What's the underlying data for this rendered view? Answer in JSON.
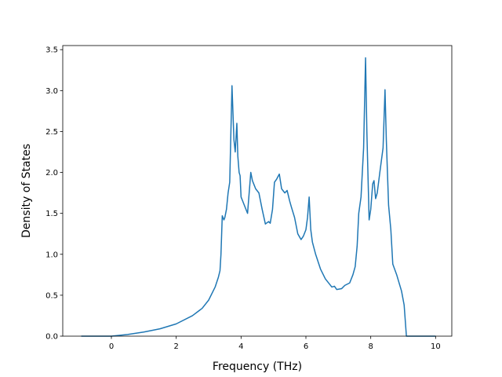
{
  "chart_data": {
    "type": "line",
    "title": "",
    "xlabel": "Frequency (THz)",
    "ylabel": "Density of States",
    "xlim": [
      -1.5,
      10.5
    ],
    "ylim": [
      0,
      3.55
    ],
    "xticks": [
      0,
      2,
      4,
      6,
      8,
      10
    ],
    "xtick_labels": [
      "0",
      "2",
      "4",
      "6",
      "8",
      "10"
    ],
    "yticks": [
      0.0,
      0.5,
      1.0,
      1.5,
      2.0,
      2.5,
      3.0,
      3.5
    ],
    "ytick_labels": [
      "0.0",
      "0.5",
      "1.0",
      "1.5",
      "2.0",
      "2.5",
      "3.0",
      "3.5"
    ],
    "grid": false,
    "line_color": "#1f77b4",
    "series": [
      {
        "x": [
          -0.93,
          0.0,
          0.5,
          1.0,
          1.5,
          2.0,
          2.5,
          2.8,
          3.0,
          3.2,
          3.3,
          3.35,
          3.38,
          3.42,
          3.47,
          3.5,
          3.55,
          3.6,
          3.65,
          3.72,
          3.78,
          3.82,
          3.87,
          3.9,
          3.94,
          3.97,
          4.0,
          4.05,
          4.1,
          4.2,
          4.3,
          4.35,
          4.4,
          4.45,
          4.55,
          4.65,
          4.75,
          4.85,
          4.9,
          4.97,
          5.03,
          5.1,
          5.18,
          5.25,
          5.35,
          5.42,
          5.5,
          5.55,
          5.65,
          5.75,
          5.85,
          5.92,
          6.0,
          6.05,
          6.1,
          6.15,
          6.2,
          6.3,
          6.45,
          6.6,
          6.8,
          6.88,
          6.95,
          7.1,
          7.2,
          7.35,
          7.45,
          7.52,
          7.58,
          7.63,
          7.7,
          7.78,
          7.84,
          7.88,
          7.95,
          8.0,
          8.06,
          8.1,
          8.15,
          8.2,
          8.28,
          8.38,
          8.44,
          8.48,
          8.55,
          8.62,
          8.68,
          8.8,
          8.95,
          9.03,
          9.1,
          9.2,
          9.6,
          10.0
        ],
        "y": [
          0.0,
          0.0,
          0.02,
          0.05,
          0.09,
          0.15,
          0.25,
          0.34,
          0.44,
          0.6,
          0.72,
          0.8,
          1.0,
          1.47,
          1.42,
          1.45,
          1.55,
          1.75,
          1.88,
          3.06,
          2.4,
          2.25,
          2.6,
          2.2,
          2.0,
          1.96,
          1.7,
          1.65,
          1.6,
          1.5,
          2.0,
          1.9,
          1.85,
          1.8,
          1.75,
          1.55,
          1.37,
          1.4,
          1.38,
          1.55,
          1.88,
          1.92,
          1.98,
          1.8,
          1.75,
          1.78,
          1.65,
          1.58,
          1.45,
          1.25,
          1.18,
          1.22,
          1.3,
          1.45,
          1.7,
          1.3,
          1.15,
          1.0,
          0.82,
          0.7,
          0.6,
          0.61,
          0.57,
          0.58,
          0.62,
          0.65,
          0.75,
          0.85,
          1.1,
          1.5,
          1.7,
          2.3,
          3.4,
          2.5,
          1.42,
          1.55,
          1.86,
          1.9,
          1.68,
          1.75,
          2.0,
          2.3,
          3.01,
          2.4,
          1.6,
          1.3,
          0.88,
          0.75,
          0.55,
          0.38,
          0.0,
          0.0,
          0.0,
          0.0
        ]
      }
    ]
  }
}
